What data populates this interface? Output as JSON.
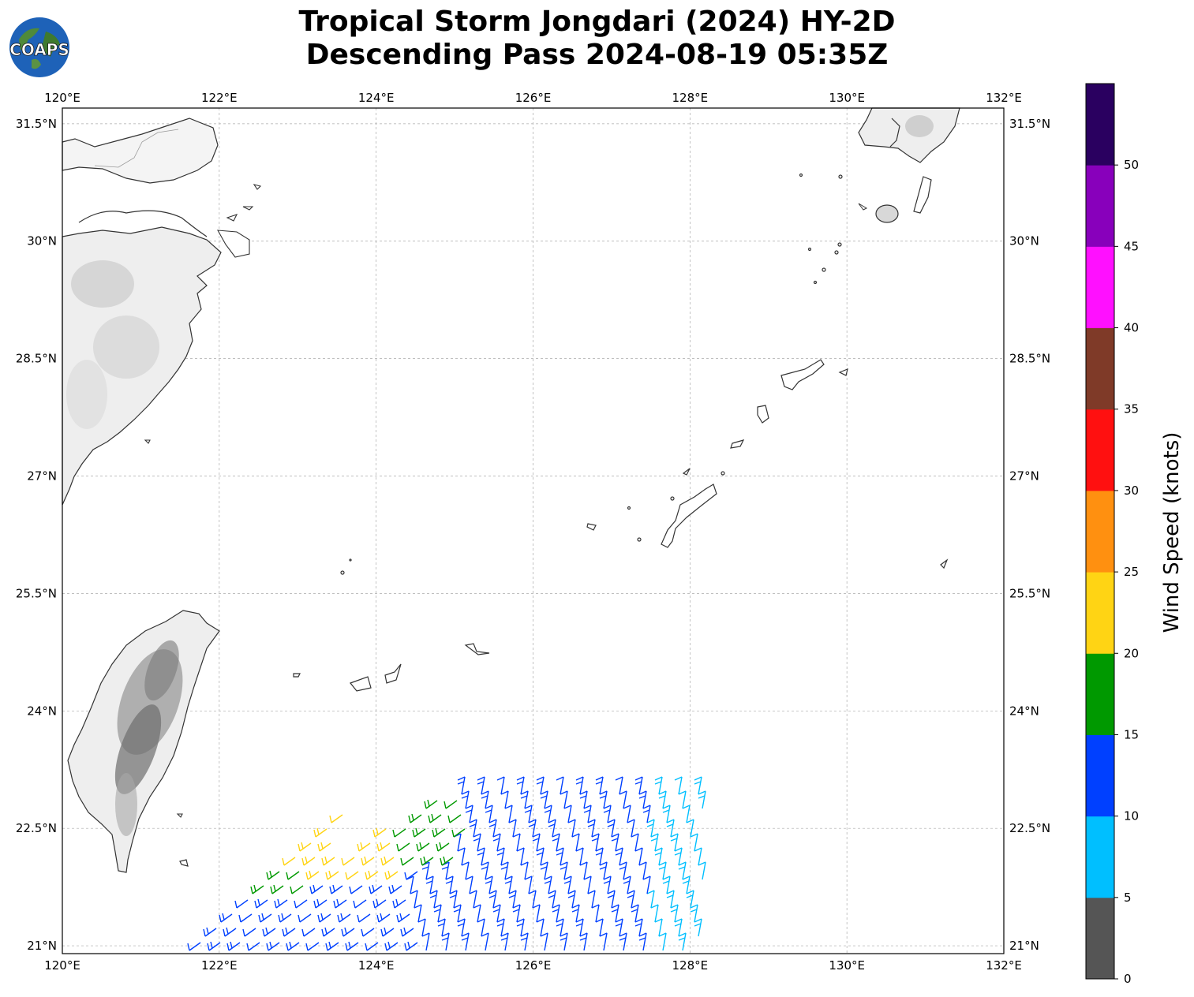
{
  "title": {
    "line1": "Tropical Storm Jongdari (2024) HY-2D",
    "line2": "Descending Pass 2024-08-19 05:35Z"
  },
  "logo": {
    "text": "COAPS",
    "icon": "globe-logo-icon"
  },
  "map": {
    "lon_range": [
      120,
      132
    ],
    "lat_range": [
      20.9,
      31.7
    ],
    "lon_ticks": [
      "120°E",
      "122°E",
      "124°E",
      "126°E",
      "128°E",
      "130°E",
      "132°E"
    ],
    "lat_ticks": [
      "31.5°N",
      "30°N",
      "28.5°N",
      "27°N",
      "25.5°N",
      "24°N",
      "22.5°N",
      "21°N"
    ],
    "gridlines": true,
    "coastline_color": "#333333"
  },
  "colorbar": {
    "label": "Wind Speed (knots)",
    "ticks": [
      "0",
      "5",
      "10",
      "15",
      "20",
      "25",
      "30",
      "35",
      "40",
      "45",
      "50"
    ],
    "colors": [
      "#555555",
      "#00bfff",
      "#0040ff",
      "#009900",
      "#ffd414",
      "#ff9010",
      "#ff1010",
      "#7f3a28",
      "#ff10ff",
      "#8800bb",
      "#2a0060"
    ]
  },
  "wind_barbs": {
    "description_colors": {
      "blue": "#0040ff",
      "green": "#009900",
      "yellow": "#ffd414",
      "orange": "#ff9010",
      "cyan": "#00bfff"
    }
  }
}
